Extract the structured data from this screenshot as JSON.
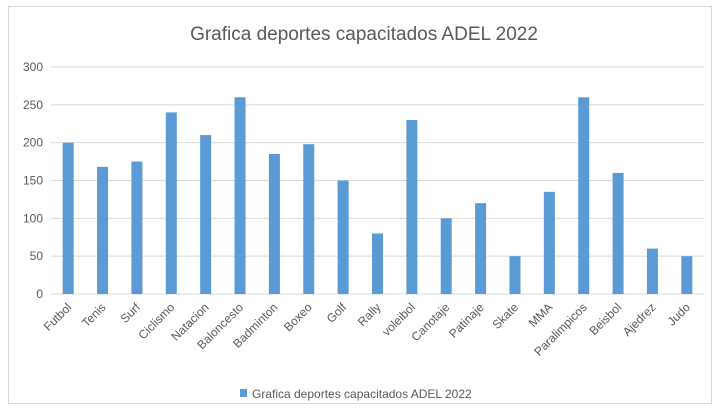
{
  "chart_data": {
    "type": "bar",
    "title": "Grafica deportes capacitados ADEL 2022",
    "xlabel": "",
    "ylabel": "",
    "categories": [
      "Futbol",
      "Tenis",
      "Surf",
      "Ciclismo",
      "Natacion",
      "Baloncesto",
      "Badminton",
      "Boxeo",
      "Golf",
      "Rally",
      "voleibol",
      "Canotaje",
      "Patinaje",
      "Skate",
      "MMA",
      "Paralimpicos",
      "Beisbol",
      "Ajedrez",
      "Judo"
    ],
    "series": [
      {
        "name": "Grafica deportes capacitados ADEL 2022",
        "color": "#5b9bd5",
        "values": [
          200,
          168,
          175,
          240,
          210,
          260,
          185,
          198,
          150,
          80,
          230,
          100,
          120,
          50,
          135,
          260,
          160,
          60,
          50
        ]
      }
    ],
    "ylim": [
      0,
      300
    ],
    "yticks": [
      "0",
      "50",
      "100",
      "150",
      "200",
      "250",
      "300"
    ],
    "grid": true,
    "legend_position": "bottom",
    "colors": {
      "gridline": "#d9d9d9",
      "text": "#595959"
    }
  }
}
